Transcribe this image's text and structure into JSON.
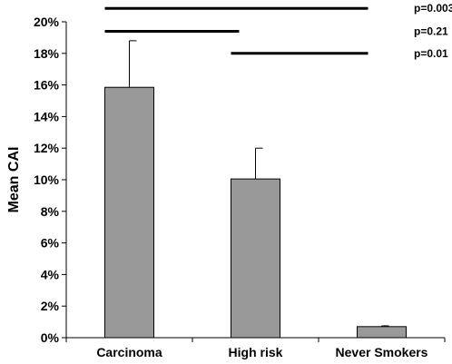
{
  "chart_data": {
    "type": "bar",
    "categories": [
      "Carcinoma",
      "High risk",
      "Never Smokers"
    ],
    "values": [
      15.85,
      10.05,
      0.7
    ],
    "error_upper": [
      18.8,
      12.0,
      0.75
    ],
    "ylabel": "Mean CAI",
    "ylim": [
      0,
      20
    ],
    "yticks": [
      "0%",
      "2%",
      "4%",
      "6%",
      "8%",
      "10%",
      "12%",
      "14%",
      "16%",
      "18%",
      "20%"
    ],
    "grid": false,
    "bar_color": "#999999",
    "comparisons": [
      {
        "from": "Carcinoma",
        "to": "Never Smokers",
        "label": "p=0.003",
        "y": 20.85
      },
      {
        "from": "Carcinoma",
        "to": "High risk",
        "label": "p=0.21",
        "y": 19.4
      },
      {
        "from": "High risk",
        "to": "Never Smokers",
        "label": "p=0.01",
        "y": 18.0
      }
    ]
  }
}
